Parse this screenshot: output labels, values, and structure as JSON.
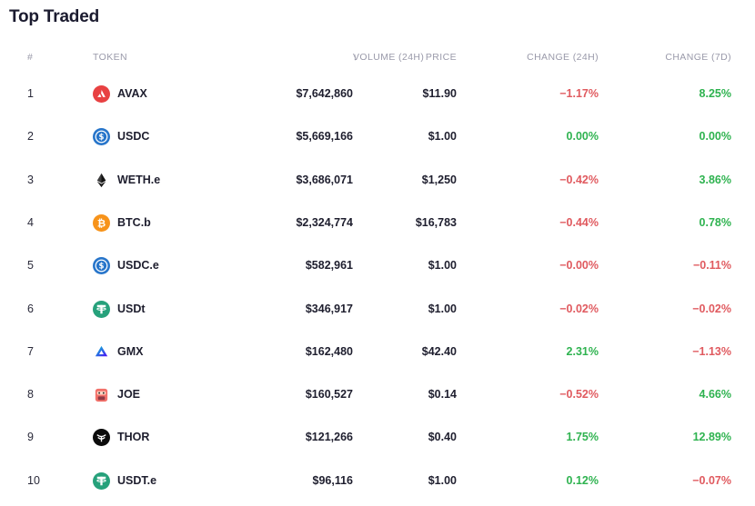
{
  "title": "Top Traded",
  "columns": {
    "rank": "#",
    "token": "TOKEN",
    "volume": "VOLUME (24H)",
    "price": "PRICE",
    "change24": "CHANGE (24H)",
    "change7": "CHANGE (7D)"
  },
  "colors": {
    "negative": "#e05a5f",
    "positive": "#2fb350"
  },
  "rows": [
    {
      "rank": "1",
      "symbol": "AVAX",
      "icon": "avax-icon",
      "volume": "$7,642,860",
      "price": "$11.90",
      "change24": "−1.17%",
      "change7": "8.25%"
    },
    {
      "rank": "2",
      "symbol": "USDC",
      "icon": "usdc-icon",
      "volume": "$5,669,166",
      "price": "$1.00",
      "change24": "0.00%",
      "change7": "0.00%"
    },
    {
      "rank": "3",
      "symbol": "WETH.e",
      "icon": "eth-icon",
      "volume": "$3,686,071",
      "price": "$1,250",
      "change24": "−0.42%",
      "change7": "3.86%"
    },
    {
      "rank": "4",
      "symbol": "BTC.b",
      "icon": "btc-icon",
      "volume": "$2,324,774",
      "price": "$16,783",
      "change24": "−0.44%",
      "change7": "0.78%"
    },
    {
      "rank": "5",
      "symbol": "USDC.e",
      "icon": "usdc-icon",
      "volume": "$582,961",
      "price": "$1.00",
      "change24": "−0.00%",
      "change7": "−0.11%"
    },
    {
      "rank": "6",
      "symbol": "USDt",
      "icon": "tether-icon",
      "volume": "$346,917",
      "price": "$1.00",
      "change24": "−0.02%",
      "change7": "−0.02%"
    },
    {
      "rank": "7",
      "symbol": "GMX",
      "icon": "gmx-icon",
      "volume": "$162,480",
      "price": "$42.40",
      "change24": "2.31%",
      "change7": "−1.13%"
    },
    {
      "rank": "8",
      "symbol": "JOE",
      "icon": "joe-icon",
      "volume": "$160,527",
      "price": "$0.14",
      "change24": "−0.52%",
      "change7": "4.66%"
    },
    {
      "rank": "9",
      "symbol": "THOR",
      "icon": "thor-icon",
      "volume": "$121,266",
      "price": "$0.40",
      "change24": "1.75%",
      "change7": "12.89%"
    },
    {
      "rank": "10",
      "symbol": "USDT.e",
      "icon": "tether-icon",
      "volume": "$96,116",
      "price": "$1.00",
      "change24": "0.12%",
      "change7": "−0.07%"
    }
  ]
}
